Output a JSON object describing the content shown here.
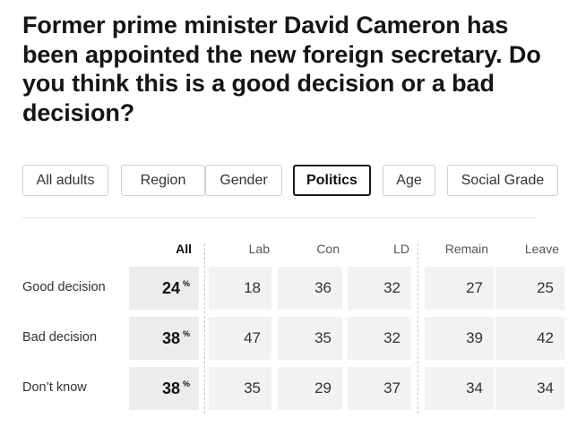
{
  "question": "Former prime minister David Cameron has been appointed the new foreign secretary. Do you think this is a good decision or a bad decision?",
  "tabs": [
    {
      "label": "All adults",
      "active": false
    },
    {
      "label": "Region",
      "active": false
    },
    {
      "label": "Gender",
      "active": false
    },
    {
      "label": "Politics",
      "active": true
    },
    {
      "label": "Age",
      "active": false
    },
    {
      "label": "Social Grade",
      "active": false
    }
  ],
  "table": {
    "columns": [
      "All",
      "Lab",
      "Con",
      "LD",
      "Remain",
      "Leave"
    ],
    "percent_symbol": "%",
    "rows": [
      {
        "label": "Good decision",
        "all": "24",
        "values": [
          "18",
          "36",
          "32",
          "27",
          "25"
        ]
      },
      {
        "label": "Bad decision",
        "all": "38",
        "values": [
          "47",
          "35",
          "32",
          "39",
          "42"
        ]
      },
      {
        "label": "Don’t know",
        "all": "38",
        "values": [
          "35",
          "29",
          "37",
          "34",
          "34"
        ]
      }
    ]
  }
}
